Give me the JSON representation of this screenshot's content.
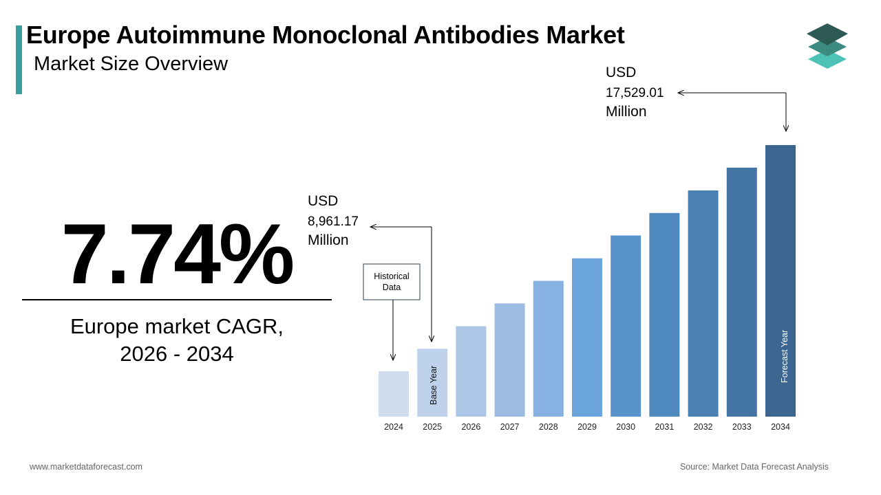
{
  "header": {
    "title": "Europe Autoimmune Monoclonal Antibodies Market",
    "subtitle": "Market Size Overview"
  },
  "colors": {
    "accent": "#3a9e9e",
    "logo_dark": "#2d5a52",
    "logo_mid": "#3d8a7e",
    "logo_light": "#4fc2b8"
  },
  "cagr": {
    "value": "7.74%",
    "label_line1": "Europe market CAGR,",
    "label_line2": "2026 - 2034"
  },
  "chart_data": {
    "type": "bar",
    "title": "",
    "xlabel": "",
    "ylabel": "",
    "categories": [
      "2024",
      "2025",
      "2026",
      "2027",
      "2028",
      "2029",
      "2030",
      "2031",
      "2032",
      "2033",
      "2034"
    ],
    "values": [
      null,
      8961.17,
      null,
      null,
      null,
      null,
      null,
      null,
      null,
      null,
      17529.01
    ],
    "relative_heights": [
      0.167,
      0.25,
      0.333,
      0.417,
      0.5,
      0.583,
      0.667,
      0.75,
      0.833,
      0.917,
      1.0
    ],
    "bar_colors": [
      "#d0ddee",
      "#bfd2eb",
      "#aec6e6",
      "#9cbbe0",
      "#87b1e0",
      "#6ba3dc",
      "#5a93cc",
      "#4f89be",
      "#4a80b3",
      "#4474a3",
      "#3c6690"
    ],
    "unit": "USD Million",
    "annotations": {
      "start": {
        "line1": "USD",
        "line2": "8,961.17",
        "line3": "Million",
        "year": "2025"
      },
      "end": {
        "line1": "USD",
        "line2": "17,529.01",
        "line3": "Million",
        "year": "2034"
      },
      "historical_line1": "Historical",
      "historical_line2": "Data",
      "base_year": "Base Year",
      "forecast_year": "Forecast Year"
    }
  },
  "footer": {
    "website": "www.marketdataforecast.com",
    "source": "Source: Market Data Forecast Analysis"
  }
}
